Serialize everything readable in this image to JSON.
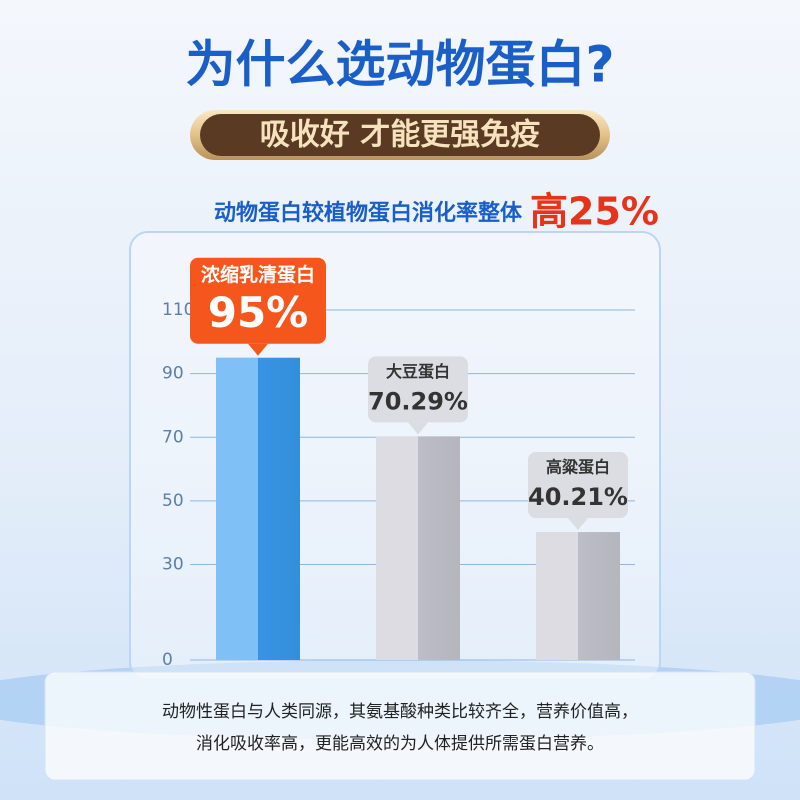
{
  "chart_data": {
    "type": "bar",
    "title": "为什么选动物蛋白?",
    "banner": "吸收好 才能更强免疫",
    "subtitle": "动物蛋白较植物蛋白消化率整体",
    "subtitle_highlight": "高25%",
    "categories": [
      "浓缩乳清蛋白",
      "大豆蛋白",
      "高粱蛋白"
    ],
    "values": [
      95,
      70.29,
      40.21
    ],
    "value_labels": [
      "95%",
      "70.29%",
      "40.21%"
    ],
    "colors": [
      "#3a9ef2",
      "#c9c9d3",
      "#c9c9d3"
    ],
    "label_colors": [
      "#f4561c",
      "#dcdde2",
      "#dcdde2"
    ],
    "ylim": [
      0,
      110
    ],
    "yticks": [
      0,
      30,
      50,
      70,
      90,
      110
    ],
    "grid": true,
    "footer": [
      "动物性蛋白与人类同源，其氨基酸种类比较齐全，营养价值高，",
      "消化吸收率高，更能高效的为人体提供所需蛋白营养。"
    ]
  }
}
